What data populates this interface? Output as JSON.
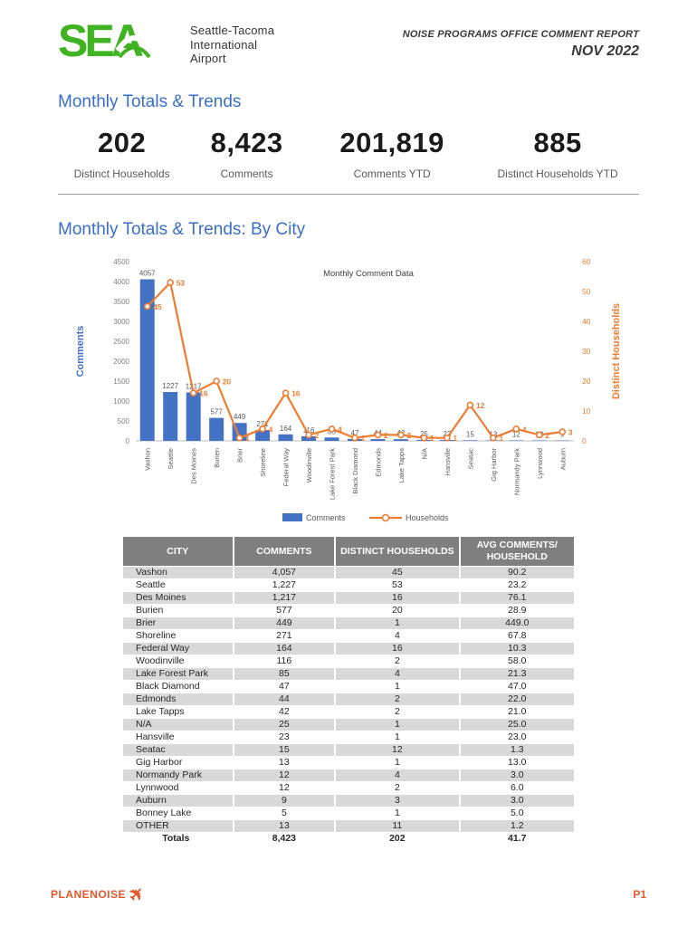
{
  "header": {
    "logo_text": "SEA",
    "logo_lines": [
      "Seattle-Tacoma",
      "International",
      "Airport"
    ],
    "report_title": "NOISE PROGRAMS OFFICE COMMENT REPORT",
    "report_period": "NOV 2022"
  },
  "sections": {
    "totals_heading": "Monthly Totals & Trends",
    "by_city_heading": "Monthly Totals & Trends: By City"
  },
  "kpis": [
    {
      "value": "202",
      "label": "Distinct Households"
    },
    {
      "value": "8,423",
      "label": "Comments"
    },
    {
      "value": "201,819",
      "label": "Comments YTD"
    },
    {
      "value": "885",
      "label": "Distinct Households YTD"
    }
  ],
  "chart_data": {
    "type": "bar",
    "subtype": "combo-bar-line",
    "title": "Monthly Comment Data",
    "categories": [
      "Vashon",
      "Seattle",
      "Des Moines",
      "Burien",
      "Brier",
      "Shoreline",
      "Federal Way",
      "Woodinville",
      "Lake Forest Park",
      "Black Diamond",
      "Edmonds",
      "Lake Tapps",
      "N/A",
      "Hansville",
      "Seatac",
      "Gig Harbor",
      "Normandy Park",
      "Lynnwood",
      "Auburn"
    ],
    "series": [
      {
        "name": "Comments",
        "type": "bar",
        "axis": "left",
        "color": "#4472c4",
        "values": [
          4057,
          1227,
          1217,
          577,
          449,
          271,
          164,
          116,
          85,
          47,
          44,
          42,
          25,
          23,
          15,
          13,
          12,
          12,
          9
        ]
      },
      {
        "name": "Households",
        "type": "line",
        "axis": "right",
        "color": "#ed7d31",
        "values": [
          45,
          53,
          16,
          20,
          1,
          4,
          16,
          2,
          4,
          1,
          2,
          2,
          1,
          1,
          12,
          1,
          4,
          2,
          3
        ]
      }
    ],
    "left_axis": {
      "label": "Comments",
      "min": 0,
      "max": 4500,
      "step": 500,
      "color": "#4472c4",
      "tick_color": "#7f7f7f"
    },
    "right_axis": {
      "label": "Distinct Households",
      "min": 0,
      "max": 60,
      "step": 10,
      "color": "#ed7d31"
    },
    "legend": [
      "Comments",
      "Households"
    ],
    "legend_position": "bottom",
    "grid": false,
    "data_label_color": "#595959"
  },
  "table": {
    "headers": [
      "CITY",
      "COMMENTS",
      "DISTINCT HOUSEHOLDS",
      "AVG COMMENTS/ HOUSEHOLD"
    ],
    "rows": [
      [
        "Vashon",
        "4,057",
        "45",
        "90.2"
      ],
      [
        "Seattle",
        "1,227",
        "53",
        "23.2"
      ],
      [
        "Des Moines",
        "1,217",
        "16",
        "76.1"
      ],
      [
        "Burien",
        "577",
        "20",
        "28.9"
      ],
      [
        "Brier",
        "449",
        "1",
        "449.0"
      ],
      [
        "Shoreline",
        "271",
        "4",
        "67.8"
      ],
      [
        "Federal Way",
        "164",
        "16",
        "10.3"
      ],
      [
        "Woodinville",
        "116",
        "2",
        "58.0"
      ],
      [
        "Lake Forest Park",
        "85",
        "4",
        "21.3"
      ],
      [
        "Black Diamond",
        "47",
        "1",
        "47.0"
      ],
      [
        "Edmonds",
        "44",
        "2",
        "22.0"
      ],
      [
        "Lake Tapps",
        "42",
        "2",
        "21.0"
      ],
      [
        "N/A",
        "25",
        "1",
        "25.0"
      ],
      [
        "Hansville",
        "23",
        "1",
        "23.0"
      ],
      [
        "Seatac",
        "15",
        "12",
        "1.3"
      ],
      [
        "Gig Harbor",
        "13",
        "1",
        "13.0"
      ],
      [
        "Normandy Park",
        "12",
        "4",
        "3.0"
      ],
      [
        "Lynnwood",
        "12",
        "2",
        "6.0"
      ],
      [
        "Auburn",
        "9",
        "3",
        "3.0"
      ],
      [
        "Bonney Lake",
        "5",
        "1",
        "5.0"
      ],
      [
        "OTHER",
        "13",
        "11",
        "1.2"
      ]
    ],
    "totals": [
      "Totals",
      "8,423",
      "202",
      "41.7"
    ]
  },
  "footer": {
    "brand": "PLANENOISE",
    "page": "P1"
  },
  "colors": {
    "heading_blue": "#3b6fc7",
    "logo_green": "#3fb321",
    "accent_orange": "#e4572e"
  }
}
